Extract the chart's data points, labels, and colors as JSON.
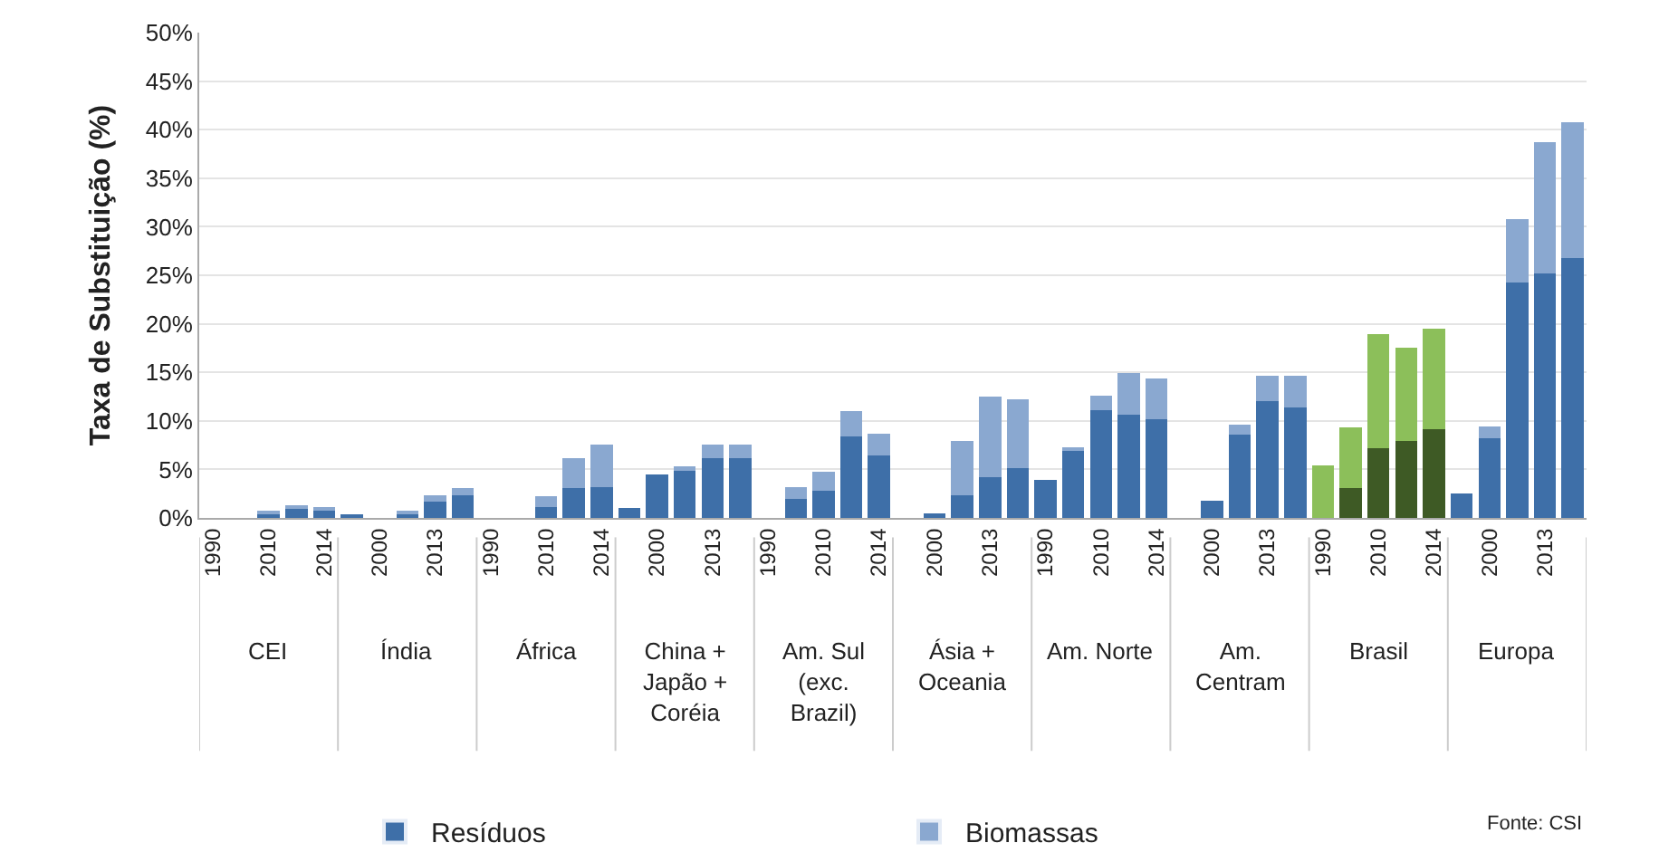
{
  "chart_data": {
    "type": "bar",
    "stacked": true,
    "ylabel": "Taxa de Substituição (%)",
    "categories": [
      "1990",
      null,
      "2010",
      null,
      "2014",
      null,
      "2000",
      null,
      "2013",
      null,
      "1990",
      null,
      "2010",
      null,
      "2014",
      null,
      "2000",
      null,
      "2013",
      null,
      "1990",
      null,
      "2010",
      null,
      "2014",
      null,
      "2000",
      null,
      "2013",
      null,
      "1990",
      null,
      "2010",
      null,
      "2014",
      null,
      "2000",
      null,
      "2013",
      null,
      "1990",
      null,
      "2010",
      null,
      "2014",
      null,
      "2000",
      null,
      "2013",
      null
    ],
    "series": [
      {
        "name": "Resíduos",
        "color": "#3e6fa8",
        "colors": [
          "#3e6fa8",
          "#3e6fa8",
          "#3e6fa8",
          "#3e6fa8",
          "#3e6fa8",
          "#3e6fa8",
          "#3e6fa8",
          "#3e6fa8",
          "#3e6fa8",
          "#3e6fa8",
          "#3e6fa8",
          "#3e6fa8",
          "#3e6fa8",
          "#3e6fa8",
          "#3e6fa8",
          "#3e6fa8",
          "#3e6fa8",
          "#3e6fa8",
          "#3e6fa8",
          "#3e6fa8",
          "#3e6fa8",
          "#3e6fa8",
          "#3e6fa8",
          "#3e6fa8",
          "#3e6fa8",
          "#3e6fa8",
          "#3e6fa8",
          "#3e6fa8",
          "#3e6fa8",
          "#3e6fa8",
          "#3e6fa8",
          "#3e6fa8",
          "#3e6fa8",
          "#3e6fa8",
          "#3e6fa8",
          "#3e6fa8",
          "#3e6fa8",
          "#3e6fa8",
          "#3e6fa8",
          "#3e6fa8",
          "#3e5a25",
          "#3e5a25",
          "#3e5a25",
          "#3e5a25",
          "#3e5a25",
          "#3e6fa8",
          "#3e6fa8",
          "#3e6fa8",
          "#3e6fa8",
          "#3e6fa8"
        ],
        "values": [
          0,
          0,
          0.5,
          1.1,
          0.8,
          0.2,
          0,
          0.4,
          1.7,
          2.3,
          0,
          0,
          1.1,
          3.1,
          3.2,
          1.0,
          4.5,
          5.0,
          6.2,
          6.2,
          0,
          2.0,
          2.8,
          8.4,
          6.4,
          0,
          0.5,
          2.3,
          4.2,
          5.1,
          3.9,
          6.9,
          11.1,
          10.6,
          10.2,
          0,
          1.8,
          8.6,
          12.0,
          11.4,
          0,
          3.1,
          7.2,
          7.9,
          9.1,
          2.5,
          8.2,
          24.3,
          25.2,
          26.8
        ]
      },
      {
        "name": "Biomassas",
        "color": "#8aa8d0",
        "colors": [
          "#8aa8d0",
          "#8aa8d0",
          "#8aa8d0",
          "#8aa8d0",
          "#8aa8d0",
          "#8aa8d0",
          "#8aa8d0",
          "#8aa8d0",
          "#8aa8d0",
          "#8aa8d0",
          "#8aa8d0",
          "#8aa8d0",
          "#8aa8d0",
          "#8aa8d0",
          "#8aa8d0",
          "#8aa8d0",
          "#8aa8d0",
          "#8aa8d0",
          "#8aa8d0",
          "#8aa8d0",
          "#8aa8d0",
          "#8aa8d0",
          "#8aa8d0",
          "#8aa8d0",
          "#8aa8d0",
          "#8aa8d0",
          "#8aa8d0",
          "#8aa8d0",
          "#8aa8d0",
          "#8aa8d0",
          "#8aa8d0",
          "#8aa8d0",
          "#8aa8d0",
          "#8aa8d0",
          "#8aa8d0",
          "#8aa8d0",
          "#8aa8d0",
          "#8aa8d0",
          "#8aa8d0",
          "#8aa8d0",
          "#8cbf5a",
          "#8cbf5a",
          "#8cbf5a",
          "#8cbf5a",
          "#8cbf5a",
          "#8aa8d0",
          "#8aa8d0",
          "#8aa8d0",
          "#8aa8d0",
          "#8aa8d0"
        ],
        "values": [
          0,
          0,
          0.2,
          0.2,
          0.2,
          0,
          0,
          0.2,
          0.6,
          0.8,
          0,
          0,
          1.1,
          3.1,
          4.4,
          0,
          0,
          0.3,
          1.4,
          1.4,
          0,
          1.2,
          2.0,
          2.6,
          2.3,
          0,
          0,
          5.6,
          8.3,
          7.1,
          0,
          0.4,
          1.5,
          4.3,
          4.2,
          0,
          0,
          1.0,
          2.6,
          3.2,
          5.4,
          6.2,
          11.7,
          9.6,
          10.4,
          0,
          1.2,
          6.5,
          13.5,
          14.0
        ]
      }
    ],
    "ylim": [
      0,
      50
    ],
    "yticks": [
      {
        "value": 0,
        "label": "0%"
      },
      {
        "value": 5,
        "label": "5%"
      },
      {
        "value": 10,
        "label": "10%"
      },
      {
        "value": 15,
        "label": "15%"
      },
      {
        "value": 20,
        "label": "20%"
      },
      {
        "value": 25,
        "label": "25%"
      },
      {
        "value": 30,
        "label": "30%"
      },
      {
        "value": 35,
        "label": "35%"
      },
      {
        "value": 40,
        "label": "40%"
      },
      {
        "value": 45,
        "label": "45%"
      },
      {
        "value": 50,
        "label": "50%"
      }
    ],
    "grid": "y",
    "legend": "bottom",
    "annotations": [
      "CEI",
      "Índia",
      "África",
      "China +\nJapão +\nCoréia",
      "Am. Sul\n(exc.\nBrazil)",
      "Ásia +\nOceania",
      "Am. Norte",
      "Am.\nCentram",
      "Brasil",
      "Europa",
      "Fonte: CSI"
    ]
  }
}
